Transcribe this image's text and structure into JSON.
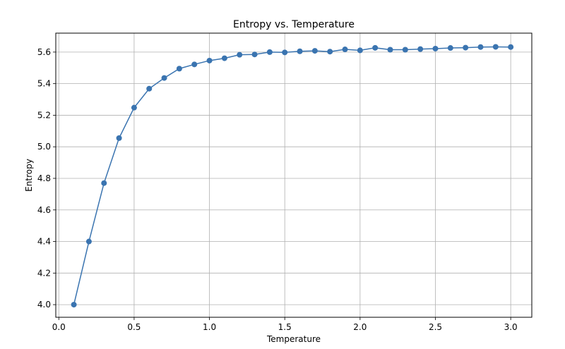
{
  "chart_data": {
    "type": "line",
    "title": "Entropy vs. Temperature",
    "xlabel": "Temperature",
    "ylabel": "Entropy",
    "xlim": [
      -0.02,
      3.14
    ],
    "ylim": [
      3.92,
      5.72
    ],
    "xticks": [
      0.0,
      0.5,
      1.0,
      1.5,
      2.0,
      2.5,
      3.0
    ],
    "xtick_labels": [
      "0.0",
      "0.5",
      "1.0",
      "1.5",
      "2.0",
      "2.5",
      "3.0"
    ],
    "yticks": [
      4.0,
      4.2,
      4.4,
      4.6,
      4.8,
      5.0,
      5.2,
      5.4,
      5.6
    ],
    "ytick_labels": [
      "4.0",
      "4.2",
      "4.4",
      "4.6",
      "4.8",
      "5.0",
      "5.2",
      "5.4",
      "5.6"
    ],
    "grid": true,
    "colors": {
      "line": "#3a74b0",
      "marker": "#3a74b0",
      "grid": "#b0b0b0"
    },
    "series": [
      {
        "x": [
          0.1,
          0.2,
          0.3,
          0.4,
          0.5,
          0.6,
          0.7,
          0.8,
          0.9,
          1.0,
          1.1,
          1.2,
          1.3,
          1.4,
          1.5,
          1.6,
          1.7,
          1.8,
          1.9,
          2.0,
          2.1,
          2.2,
          2.3,
          2.4,
          2.5,
          2.6,
          2.7,
          2.8,
          2.9,
          3.0
        ],
        "values": [
          4.0,
          4.4,
          4.77,
          5.055,
          5.248,
          5.368,
          5.436,
          5.495,
          5.522,
          5.546,
          5.561,
          5.583,
          5.585,
          5.6,
          5.598,
          5.605,
          5.608,
          5.603,
          5.617,
          5.611,
          5.627,
          5.615,
          5.615,
          5.619,
          5.622,
          5.626,
          5.628,
          5.632,
          5.633,
          5.632
        ]
      }
    ]
  }
}
